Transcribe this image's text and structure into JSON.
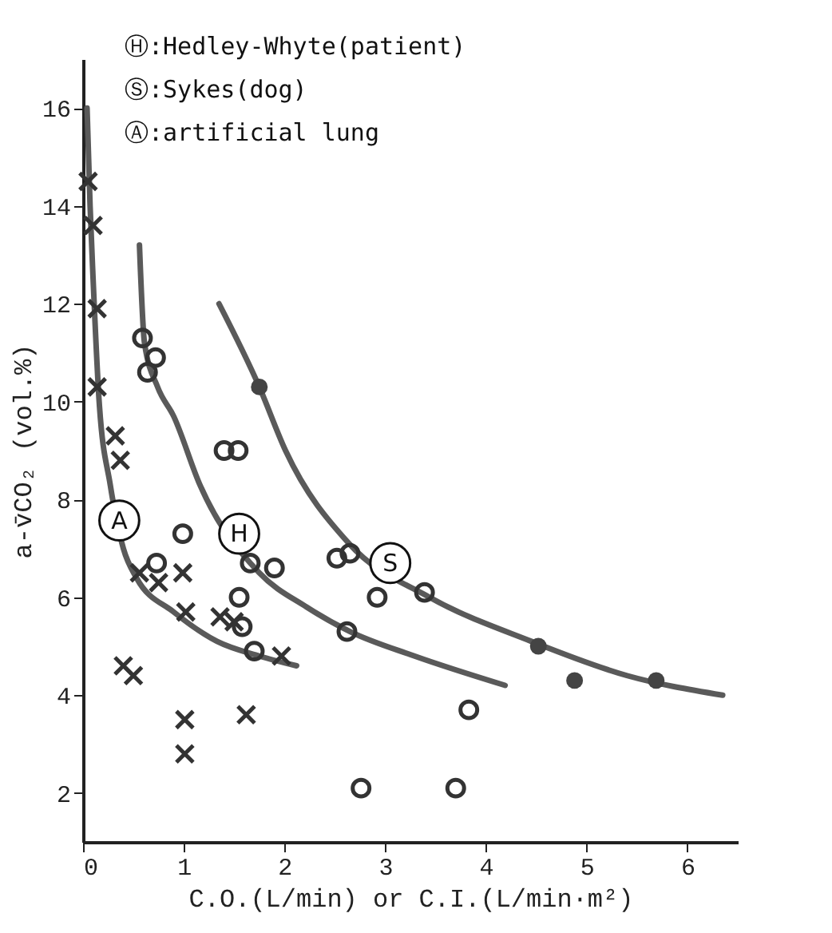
{
  "chart_data": {
    "type": "scatter",
    "xlabel": "C.O.(L/min) or C.I.(L/min·m²)",
    "ylabel": "a-v̄CO₂ (vol.%)",
    "xlim": [
      0,
      6.5
    ],
    "ylim": [
      1,
      17
    ],
    "xticks": [
      0,
      1,
      2,
      3,
      4,
      5,
      6
    ],
    "yticks": [
      2,
      4,
      6,
      8,
      10,
      12,
      14,
      16
    ],
    "grid": false,
    "annotations": [
      "Ⓗ:Hedley-Whyte(patient)",
      "Ⓢ:Sykes(dog)",
      "Ⓐ:artificial lung",
      {
        "text": "A",
        "x": 0.36,
        "y": 7.57
      },
      {
        "text": "H",
        "x": 1.55,
        "y": 7.3
      },
      {
        "text": "S",
        "x": 3.05,
        "y": 6.7
      }
    ],
    "series": [
      {
        "type": "line",
        "color": "#5a5a5a",
        "line_style": "solid",
        "marker": "none",
        "x": [
          0.04,
          0.07,
          0.1,
          0.16,
          0.27,
          0.4,
          0.53,
          0.9,
          1.33,
          1.75,
          2.12
        ],
        "values": [
          16.0,
          14.0,
          12.5,
          10.0,
          8.3,
          7.0,
          6.4,
          5.7,
          5.1,
          4.8,
          4.6
        ]
      },
      {
        "type": "line",
        "color": "#5a5a5a",
        "line_style": "solid",
        "marker": "none",
        "x": [
          0.56,
          0.61,
          0.74,
          0.9,
          1.16,
          1.4,
          1.75,
          2.22,
          2.65,
          3.29,
          4.19
        ],
        "values": [
          13.2,
          11.2,
          10.3,
          9.7,
          8.3,
          null,
          6.5,
          5.8,
          5.3,
          4.8,
          4.2
        ]
      },
      {
        "type": "line",
        "color": "#5a5a5a",
        "line_style": "solid",
        "marker": "none",
        "x": [
          1.35,
          1.75,
          2.01,
          2.64,
          3.44,
          4.45,
          5.4,
          6.35
        ],
        "values": [
          12.0,
          10.3,
          9.0,
          7.1,
          6.0,
          5.1,
          4.4,
          4.0
        ]
      },
      {
        "color": "#333333",
        "marker": "cross",
        "x": [
          0.05,
          0.1,
          0.14,
          0.14,
          0.32,
          0.37,
          0.56,
          0.75,
          0.99,
          1.02,
          1.36,
          1.5,
          1.97,
          0.4,
          0.5,
          1.01,
          1.01,
          1.62
        ],
        "values": [
          14.5,
          13.6,
          11.9,
          10.3,
          9.3,
          8.8,
          6.5,
          6.3,
          6.5,
          5.7,
          5.6,
          5.5,
          4.8,
          4.6,
          4.4,
          3.5,
          2.8,
          3.6
        ]
      },
      {
        "color": "#333333",
        "marker": "circle",
        "x": [
          0.59,
          0.72,
          0.64,
          1.4,
          1.54,
          0.99,
          0.73,
          1.66,
          1.9,
          1.55,
          1.58,
          1.7,
          2.62,
          2.52,
          2.65,
          3.39,
          2.92,
          3.83,
          2.76,
          3.7
        ],
        "values": [
          11.3,
          10.9,
          10.6,
          9.0,
          9.0,
          7.3,
          6.7,
          6.7,
          6.6,
          6.0,
          5.4,
          4.9,
          5.3,
          6.8,
          6.9,
          6.1,
          6.0,
          3.7,
          2.1,
          2.1
        ]
      },
      {
        "color": "#444444",
        "marker": "circle",
        "x": [
          1.75,
          4.52,
          4.88,
          5.69
        ],
        "values": [
          10.3,
          5.0,
          4.3,
          4.3
        ]
      }
    ]
  }
}
